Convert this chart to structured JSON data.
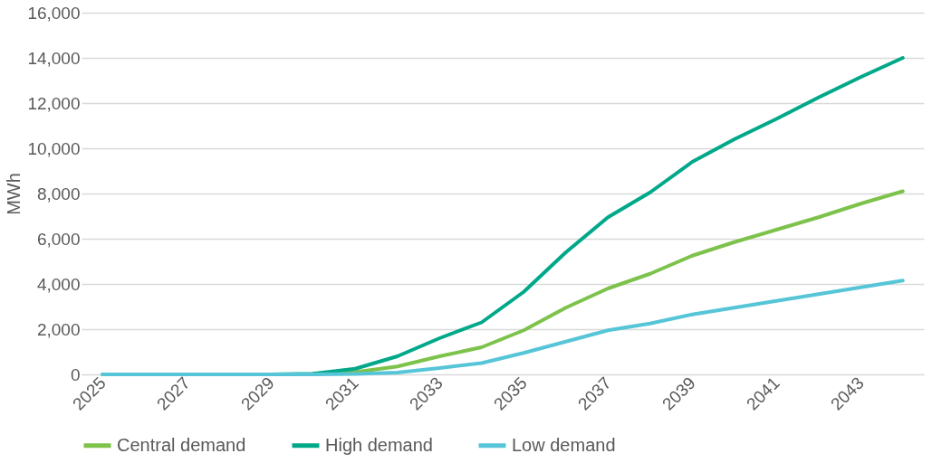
{
  "chart_data": {
    "type": "line",
    "ylabel": "MWh",
    "categories": [
      "2025",
      null,
      "2027",
      null,
      "2029",
      null,
      "2031",
      null,
      "2033",
      null,
      "2035",
      null,
      "2037",
      null,
      "2039",
      null,
      "2041",
      null,
      "2043",
      null
    ],
    "series": [
      {
        "name": "Central demand",
        "color": "#7dc24b",
        "values": [
          null,
          null,
          null,
          null,
          null,
          20,
          100,
          350,
          800,
          1200,
          1950,
          2950,
          3800,
          4450,
          5250,
          5850,
          6400,
          6950,
          7550,
          8100
        ]
      },
      {
        "name": "High demand",
        "color": "#00a88a",
        "values": [
          0,
          0,
          0,
          0,
          0,
          30,
          250,
          800,
          1600,
          2300,
          3650,
          5400,
          6950,
          8050,
          9400,
          10400,
          11300,
          12250,
          13150,
          14000
        ]
      },
      {
        "name": "Low demand",
        "color": "#56c5d8",
        "values": [
          0,
          0,
          0,
          0,
          0,
          0,
          20,
          80,
          280,
          500,
          950,
          1450,
          1950,
          2250,
          2650,
          2950,
          3250,
          3550,
          3850,
          4150
        ]
      }
    ],
    "ylim": [
      0,
      16000
    ],
    "yticks": [
      {
        "value": 0,
        "label": "0"
      },
      {
        "value": 2000,
        "label": "2,000"
      },
      {
        "value": 4000,
        "label": "4,000"
      },
      {
        "value": 6000,
        "label": "6,000"
      },
      {
        "value": 8000,
        "label": "8,000"
      },
      {
        "value": 10000,
        "label": "10,000"
      },
      {
        "value": 12000,
        "label": "12,000"
      },
      {
        "value": 14000,
        "label": "14,000"
      },
      {
        "value": 16000,
        "label": "16,000"
      }
    ],
    "grid": "y",
    "legend": "bottom",
    "marker": "none",
    "line_style": "solid"
  }
}
